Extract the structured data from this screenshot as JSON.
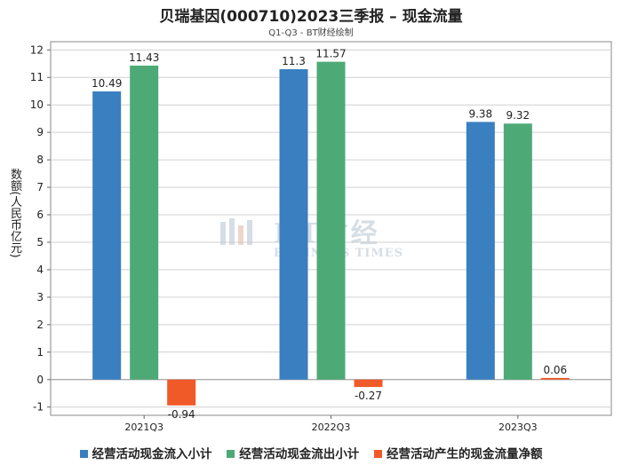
{
  "chart_data": {
    "type": "bar",
    "title": "贝瑞基因(000710)2023三季报 – 现金流量",
    "subtitle": "Q1-Q3 - BT财经绘制",
    "xlabel": "",
    "ylabel": "数额(人民币亿元)",
    "ylim": [
      -1.3,
      12.3
    ],
    "yticks": [
      -1,
      0,
      1,
      2,
      3,
      4,
      5,
      6,
      7,
      8,
      9,
      10,
      11,
      12
    ],
    "categories": [
      "2021Q3",
      "2022Q3",
      "2023Q3"
    ],
    "series": [
      {
        "name": "经营活动现金流入小计",
        "color": "#3a7fc0",
        "values": [
          10.49,
          11.3,
          9.38
        ]
      },
      {
        "name": "经营活动现金流出小计",
        "color": "#4daa77",
        "values": [
          11.43,
          11.57,
          9.32
        ]
      },
      {
        "name": "经营活动产生的现金流量净额",
        "color": "#f05a28",
        "values": [
          -0.94,
          -0.27,
          0.06
        ]
      }
    ]
  },
  "watermark": {
    "main": "BT财经",
    "sub": "BUSINESS TIMES"
  }
}
